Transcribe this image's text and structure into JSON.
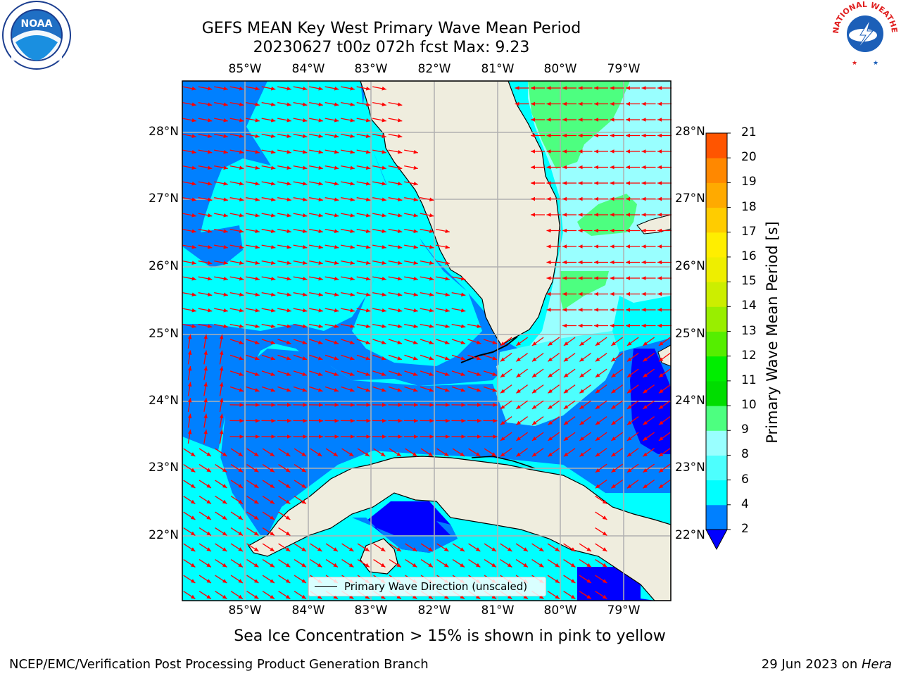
{
  "title_line1": "GEFS MEAN Key West Primary Wave Mean Period",
  "title_line2": "20230627 t00z 072h fcst   Max: 9.23",
  "legend_label": "Primary Wave Direction (unscaled)",
  "ice_note": "Sea Ice Concentration > 15% is shown in pink to yellow",
  "footer_left": "NCEP/EMC/Verification Post Processing Product Generation Branch",
  "footer_right_date": "29 Jun 2023 on ",
  "footer_right_host": "Hera",
  "colorbar_title": "Primary Wave Mean Period [s]",
  "logos": {
    "left": "NOAA",
    "right_ring": "NATIONAL WEATHER SERVICE"
  },
  "lon_labels": [
    "85°W",
    "84°W",
    "83°W",
    "82°W",
    "81°W",
    "80°W",
    "79°W"
  ],
  "lat_labels": [
    "28°N",
    "27°N",
    "26°N",
    "25°N",
    "24°N",
    "23°N",
    "22°N"
  ],
  "colorbar": {
    "levels": [
      2,
      4,
      6,
      8,
      9,
      10,
      11,
      12,
      13,
      14,
      15,
      16,
      17,
      18,
      19,
      20,
      21
    ],
    "colors": [
      "#0080ff",
      "#00ffff",
      "#4dfffe",
      "#99ffff",
      "#4dff80",
      "#00dd00",
      "#00ee00",
      "#55ee00",
      "#99ee00",
      "#ccee00",
      "#eeee00",
      "#ffee00",
      "#ffcc00",
      "#ffaa00",
      "#ff8800",
      "#ff5500",
      "#ff2200",
      "#ff0000"
    ],
    "under_color": "#0000ff"
  },
  "colors": {
    "land": "#efedde",
    "grid": "#b0b0b0",
    "arrow": "#ff0000",
    "deep": "#0080ff",
    "cyan": "#00ffff",
    "light": "#99ffff",
    "green": "#4dff80",
    "blue": "#0000ff"
  }
}
